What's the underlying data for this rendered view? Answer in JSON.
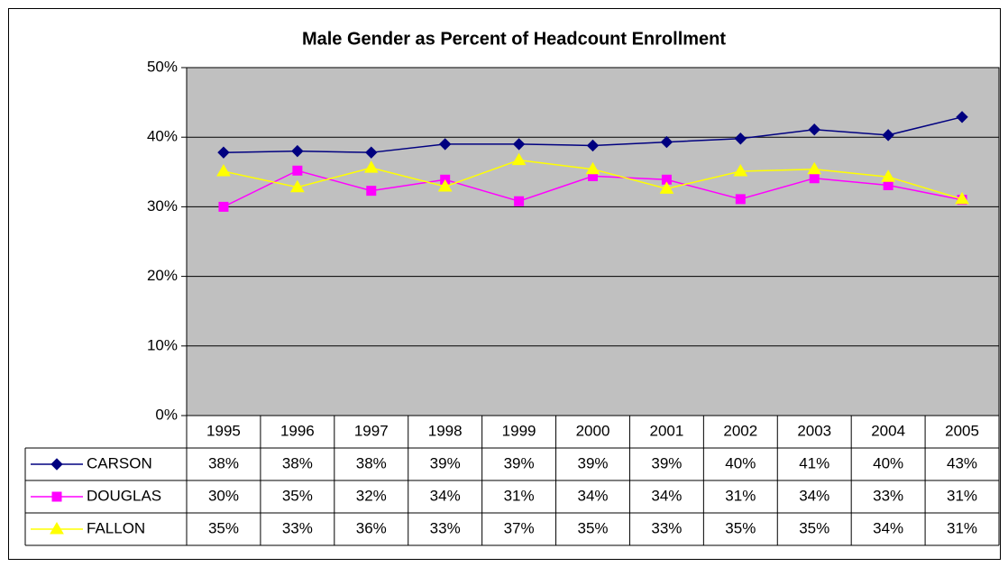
{
  "chart_data": {
    "type": "line",
    "title": "Male Gender as Percent of Headcount Enrollment",
    "categories": [
      "1995",
      "1996",
      "1997",
      "1998",
      "1999",
      "2000",
      "2001",
      "2002",
      "2003",
      "2004",
      "2005"
    ],
    "series": [
      {
        "name": "CARSON",
        "color": "#000080",
        "marker": "diamond",
        "values": [
          37.8,
          38.0,
          37.8,
          39.0,
          39.0,
          38.8,
          39.3,
          39.8,
          41.1,
          40.3,
          42.9
        ],
        "value_labels": [
          "38%",
          "38%",
          "38%",
          "39%",
          "39%",
          "39%",
          "39%",
          "40%",
          "41%",
          "40%",
          "43%"
        ]
      },
      {
        "name": "DOUGLAS",
        "color": "#FF00FF",
        "marker": "square",
        "values": [
          30.0,
          35.2,
          32.3,
          33.9,
          30.8,
          34.4,
          33.9,
          31.1,
          34.1,
          33.1,
          31.0
        ],
        "value_labels": [
          "30%",
          "35%",
          "32%",
          "34%",
          "31%",
          "34%",
          "34%",
          "31%",
          "34%",
          "33%",
          "31%"
        ]
      },
      {
        "name": "FALLON",
        "color": "#FFFF00",
        "marker": "triangle",
        "values": [
          35.1,
          32.8,
          35.6,
          32.9,
          36.7,
          35.4,
          32.6,
          35.1,
          35.4,
          34.3,
          31.1
        ],
        "value_labels": [
          "35%",
          "33%",
          "36%",
          "33%",
          "37%",
          "35%",
          "33%",
          "35%",
          "35%",
          "34%",
          "31%"
        ]
      }
    ],
    "ylim": [
      0,
      50
    ],
    "yticks": [
      {
        "value": 0,
        "label": "0%"
      },
      {
        "value": 10,
        "label": "10%"
      },
      {
        "value": 20,
        "label": "20%"
      },
      {
        "value": 30,
        "label": "30%"
      },
      {
        "value": 40,
        "label": "40%"
      },
      {
        "value": 50,
        "label": "50%"
      }
    ],
    "grid": true,
    "plot_background": "#C0C0C0"
  }
}
